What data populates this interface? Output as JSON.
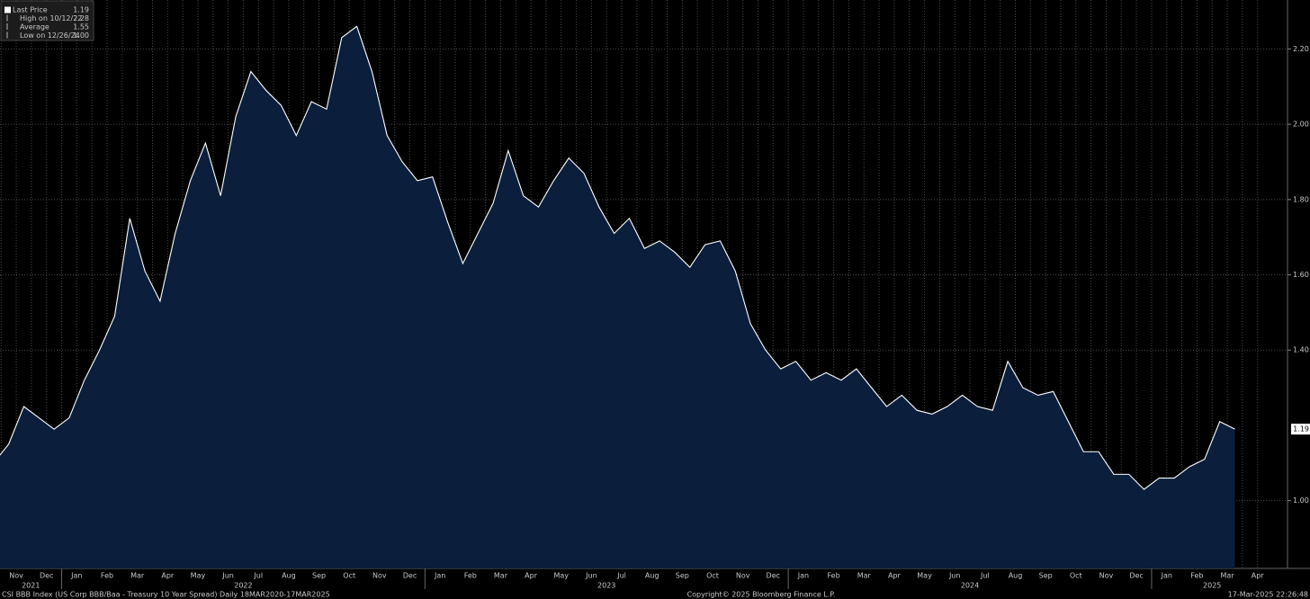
{
  "chart_data": {
    "type": "area",
    "title": "CSI BBB Index (US Corp BBB/Baa - Treasury 10 Year Spread)  Daily 18MAR2020-17MAR2025",
    "copyright": "Copyright© 2025 Bloomberg Finance L.P.",
    "timestamp": "17-Mar-2025 22:26:48",
    "legend": [
      {
        "label": "Last Price",
        "value": "1.19"
      },
      {
        "label": "High on 10/12/22",
        "value": "2.28"
      },
      {
        "label": "Average",
        "value": "1.55"
      },
      {
        "label": "Low on 12/26/24",
        "value": "1.00"
      }
    ],
    "categories": [
      null,
      "Nov",
      null,
      "Dec",
      null,
      "Jan",
      null,
      "Feb",
      null,
      "Mar",
      null,
      "Apr",
      null,
      "May",
      null,
      "Jun",
      null,
      "Jul",
      null,
      "Aug",
      null,
      "Sep",
      null,
      "Oct",
      null,
      "Nov",
      null,
      "Dec",
      null,
      "Jan",
      null,
      "Feb",
      null,
      "Mar",
      null,
      "Apr",
      null,
      "May",
      null,
      "Jun",
      null,
      "Jul",
      null,
      "Aug",
      null,
      "Sep",
      null,
      "Oct",
      null,
      "Nov",
      null,
      "Dec",
      null,
      "Jan",
      null,
      "Feb",
      null,
      "Mar",
      null,
      "Apr",
      null,
      "May",
      null,
      "Jun",
      null,
      "Jul",
      null,
      "Aug",
      null,
      "Sep",
      null,
      "Oct",
      null,
      "Nov",
      null,
      "Dec",
      null,
      "Jan",
      null,
      "Feb",
      null,
      "Mar",
      null,
      "Apr",
      null
    ],
    "x_groups": [
      {
        "label": "2021",
        "count": 5
      },
      {
        "label": "2022",
        "count": 24
      },
      {
        "label": "2023",
        "count": 24
      },
      {
        "label": "2024",
        "count": 24
      },
      {
        "label": "2025",
        "count": 8
      }
    ],
    "series": [
      {
        "name": "Last Price",
        "color": "#ffffff",
        "fill": "#0b1e3c",
        "values": [
          1.1,
          1.15,
          1.25,
          1.22,
          1.19,
          1.22,
          1.32,
          1.4,
          1.49,
          1.75,
          1.61,
          1.53,
          1.71,
          1.85,
          1.95,
          1.81,
          2.02,
          2.14,
          2.09,
          2.05,
          1.97,
          2.06,
          2.04,
          2.23,
          2.26,
          2.14,
          1.97,
          1.9,
          1.85,
          1.86,
          1.74,
          1.63,
          1.71,
          1.79,
          1.93,
          1.81,
          1.78,
          1.85,
          1.91,
          1.87,
          1.78,
          1.71,
          1.75,
          1.67,
          1.69,
          1.66,
          1.62,
          1.68,
          1.69,
          1.61,
          1.47,
          1.4,
          1.35,
          1.37,
          1.32,
          1.34,
          1.32,
          1.35,
          1.3,
          1.25,
          1.28,
          1.24,
          1.23,
          1.25,
          1.28,
          1.25,
          1.24,
          1.37,
          1.3,
          1.28,
          1.29,
          1.21,
          1.13,
          1.13,
          1.07,
          1.07,
          1.03,
          1.06,
          1.06,
          1.09,
          1.11,
          1.21,
          1.19,
          null,
          null
        ]
      }
    ],
    "ylim": [
      0.82,
      2.33
    ],
    "yticks": [
      {
        "value": 1,
        "label": "1.00"
      },
      {
        "value": 1.4,
        "label": "1.40"
      },
      {
        "value": 1.6,
        "label": "1.60"
      },
      {
        "value": 1.8,
        "label": "1.80"
      },
      {
        "value": 2,
        "label": "2.00"
      },
      {
        "value": 2.2,
        "label": "2.20"
      }
    ],
    "grid": true
  }
}
